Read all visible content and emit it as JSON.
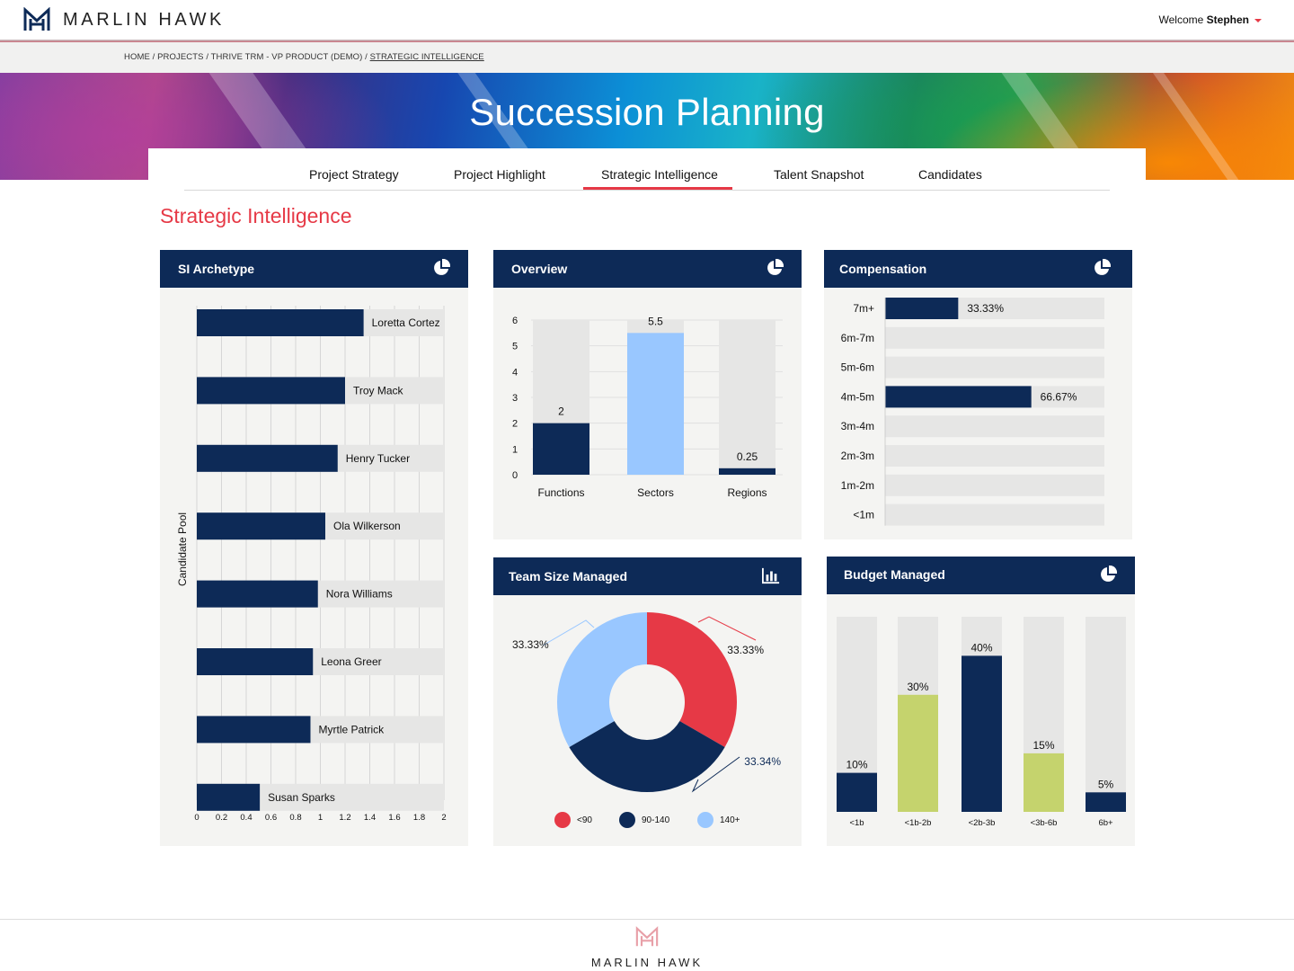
{
  "header": {
    "brand": "MARLIN HAWK",
    "welcome_prefix": "Welcome",
    "user_name": "Stephen"
  },
  "breadcrumb": {
    "path": "HOME / PROJECTS / THRIVE TRM - VP PRODUCT (DEMO) /",
    "current": "STRATEGIC INTELLIGENCE"
  },
  "hero": {
    "title": "Succession Planning"
  },
  "tabs": [
    {
      "label": "Project Strategy"
    },
    {
      "label": "Project Highlight"
    },
    {
      "label": "Strategic Intelligence",
      "active": true
    },
    {
      "label": "Talent Snapshot"
    },
    {
      "label": "Candidates"
    }
  ],
  "section_title": "Strategic Intelligence",
  "cards": {
    "archetype": {
      "title": "SI Archetype",
      "icon": "pie-chart-icon"
    },
    "overview": {
      "title": "Overview",
      "icon": "pie-chart-icon"
    },
    "compensation": {
      "title": "Compensation",
      "icon": "pie-chart-icon"
    },
    "team": {
      "title": "Team Size Managed",
      "icon": "bar-chart-icon"
    },
    "budget": {
      "title": "Budget Managed",
      "icon": "pie-chart-icon"
    }
  },
  "colors": {
    "navy": "#0d2a57",
    "red": "#e63946",
    "light_blue": "#99c7ff",
    "green": "#c5d36d",
    "track": "#e6e6e5"
  },
  "chart_data": [
    {
      "id": "archetype",
      "type": "bar",
      "orientation": "horizontal",
      "ylabel": "Candidate Pool",
      "xlim": [
        0,
        2
      ],
      "xticks": [
        "0",
        "0.2",
        "0.4",
        "0.6",
        "0.8",
        "1",
        "1.2",
        "1.4",
        "1.6",
        "1.8",
        "2"
      ],
      "categories": [
        "Loretta Cortez",
        "Troy Mack",
        "Henry Tucker",
        "Ola Wilkerson",
        "Nora Williams",
        "Leona Greer",
        "Myrtle Patrick",
        "Susan Sparks"
      ],
      "values": [
        1.35,
        1.2,
        1.14,
        1.04,
        0.98,
        0.94,
        0.92,
        0.51
      ]
    },
    {
      "id": "overview",
      "type": "bar",
      "categories": [
        "Functions",
        "Sectors",
        "Regions"
      ],
      "values": [
        2,
        5.5,
        0.25
      ],
      "data_labels": [
        "2",
        "5.5",
        "0.25"
      ],
      "ylim": [
        0,
        6
      ],
      "yticks": [
        "0",
        "1",
        "2",
        "3",
        "4",
        "5",
        "6"
      ]
    },
    {
      "id": "compensation",
      "type": "bar",
      "orientation": "horizontal",
      "categories": [
        "7m+",
        "6m-7m",
        "5m-6m",
        "4m-5m",
        "3m-4m",
        "2m-3m",
        "1m-2m",
        "<1m"
      ],
      "values": [
        33.33,
        0,
        0,
        66.67,
        0,
        0,
        0,
        0
      ],
      "data_labels": [
        "33.33%",
        "",
        "",
        "66.67%",
        "",
        "",
        "",
        ""
      ],
      "xlim": [
        0,
        100
      ]
    },
    {
      "id": "team",
      "type": "pie",
      "donut": true,
      "categories": [
        "<90",
        "90-140",
        "140+"
      ],
      "values": [
        33.33,
        33.34,
        33.33
      ],
      "data_labels": [
        "33.33%",
        "33.34%",
        "33.33%"
      ],
      "legend": "bottom"
    },
    {
      "id": "budget",
      "type": "bar",
      "categories": [
        "<1b",
        "<1b-2b",
        "<2b-3b",
        "<3b-6b",
        "6b+"
      ],
      "values": [
        10,
        30,
        40,
        15,
        5
      ],
      "data_labels": [
        "10%",
        "30%",
        "40%",
        "15%",
        "5%"
      ],
      "ylim": [
        0,
        50
      ]
    }
  ],
  "footer": {
    "brand": "MARLIN HAWK"
  }
}
